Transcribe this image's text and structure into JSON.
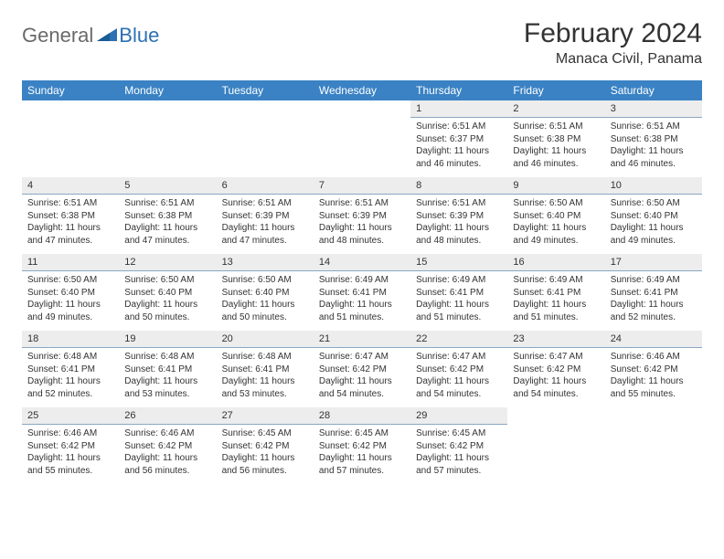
{
  "logo": {
    "gen": "General",
    "blue": "Blue"
  },
  "title": "February 2024",
  "location": "Manaca Civil, Panama",
  "colors": {
    "header_bg": "#3a82c4",
    "header_text": "#ffffff",
    "daynum_bg": "#ededed",
    "daynum_border": "#8aa6c2",
    "body_text": "#333333",
    "logo_gray": "#6a6a6a",
    "logo_blue": "#2d70b3"
  },
  "font": {
    "family": "Arial",
    "title_size_pt": 22,
    "location_size_pt": 12,
    "header_size_pt": 9,
    "body_size_pt": 7.5
  },
  "week_headers": [
    "Sunday",
    "Monday",
    "Tuesday",
    "Wednesday",
    "Thursday",
    "Friday",
    "Saturday"
  ],
  "days": [
    {
      "n": "1",
      "sr": "6:51 AM",
      "ss": "6:37 PM",
      "dl": "11 hours and 46 minutes."
    },
    {
      "n": "2",
      "sr": "6:51 AM",
      "ss": "6:38 PM",
      "dl": "11 hours and 46 minutes."
    },
    {
      "n": "3",
      "sr": "6:51 AM",
      "ss": "6:38 PM",
      "dl": "11 hours and 46 minutes."
    },
    {
      "n": "4",
      "sr": "6:51 AM",
      "ss": "6:38 PM",
      "dl": "11 hours and 47 minutes."
    },
    {
      "n": "5",
      "sr": "6:51 AM",
      "ss": "6:38 PM",
      "dl": "11 hours and 47 minutes."
    },
    {
      "n": "6",
      "sr": "6:51 AM",
      "ss": "6:39 PM",
      "dl": "11 hours and 47 minutes."
    },
    {
      "n": "7",
      "sr": "6:51 AM",
      "ss": "6:39 PM",
      "dl": "11 hours and 48 minutes."
    },
    {
      "n": "8",
      "sr": "6:51 AM",
      "ss": "6:39 PM",
      "dl": "11 hours and 48 minutes."
    },
    {
      "n": "9",
      "sr": "6:50 AM",
      "ss": "6:40 PM",
      "dl": "11 hours and 49 minutes."
    },
    {
      "n": "10",
      "sr": "6:50 AM",
      "ss": "6:40 PM",
      "dl": "11 hours and 49 minutes."
    },
    {
      "n": "11",
      "sr": "6:50 AM",
      "ss": "6:40 PM",
      "dl": "11 hours and 49 minutes."
    },
    {
      "n": "12",
      "sr": "6:50 AM",
      "ss": "6:40 PM",
      "dl": "11 hours and 50 minutes."
    },
    {
      "n": "13",
      "sr": "6:50 AM",
      "ss": "6:40 PM",
      "dl": "11 hours and 50 minutes."
    },
    {
      "n": "14",
      "sr": "6:49 AM",
      "ss": "6:41 PM",
      "dl": "11 hours and 51 minutes."
    },
    {
      "n": "15",
      "sr": "6:49 AM",
      "ss": "6:41 PM",
      "dl": "11 hours and 51 minutes."
    },
    {
      "n": "16",
      "sr": "6:49 AM",
      "ss": "6:41 PM",
      "dl": "11 hours and 51 minutes."
    },
    {
      "n": "17",
      "sr": "6:49 AM",
      "ss": "6:41 PM",
      "dl": "11 hours and 52 minutes."
    },
    {
      "n": "18",
      "sr": "6:48 AM",
      "ss": "6:41 PM",
      "dl": "11 hours and 52 minutes."
    },
    {
      "n": "19",
      "sr": "6:48 AM",
      "ss": "6:41 PM",
      "dl": "11 hours and 53 minutes."
    },
    {
      "n": "20",
      "sr": "6:48 AM",
      "ss": "6:41 PM",
      "dl": "11 hours and 53 minutes."
    },
    {
      "n": "21",
      "sr": "6:47 AM",
      "ss": "6:42 PM",
      "dl": "11 hours and 54 minutes."
    },
    {
      "n": "22",
      "sr": "6:47 AM",
      "ss": "6:42 PM",
      "dl": "11 hours and 54 minutes."
    },
    {
      "n": "23",
      "sr": "6:47 AM",
      "ss": "6:42 PM",
      "dl": "11 hours and 54 minutes."
    },
    {
      "n": "24",
      "sr": "6:46 AM",
      "ss": "6:42 PM",
      "dl": "11 hours and 55 minutes."
    },
    {
      "n": "25",
      "sr": "6:46 AM",
      "ss": "6:42 PM",
      "dl": "11 hours and 55 minutes."
    },
    {
      "n": "26",
      "sr": "6:46 AM",
      "ss": "6:42 PM",
      "dl": "11 hours and 56 minutes."
    },
    {
      "n": "27",
      "sr": "6:45 AM",
      "ss": "6:42 PM",
      "dl": "11 hours and 56 minutes."
    },
    {
      "n": "28",
      "sr": "6:45 AM",
      "ss": "6:42 PM",
      "dl": "11 hours and 57 minutes."
    },
    {
      "n": "29",
      "sr": "6:45 AM",
      "ss": "6:42 PM",
      "dl": "11 hours and 57 minutes."
    }
  ],
  "labels": {
    "sunrise": "Sunrise:",
    "sunset": "Sunset:",
    "daylight": "Daylight:"
  },
  "layout": {
    "first_weekday_index": 4,
    "cols": 7,
    "rows": 5
  }
}
